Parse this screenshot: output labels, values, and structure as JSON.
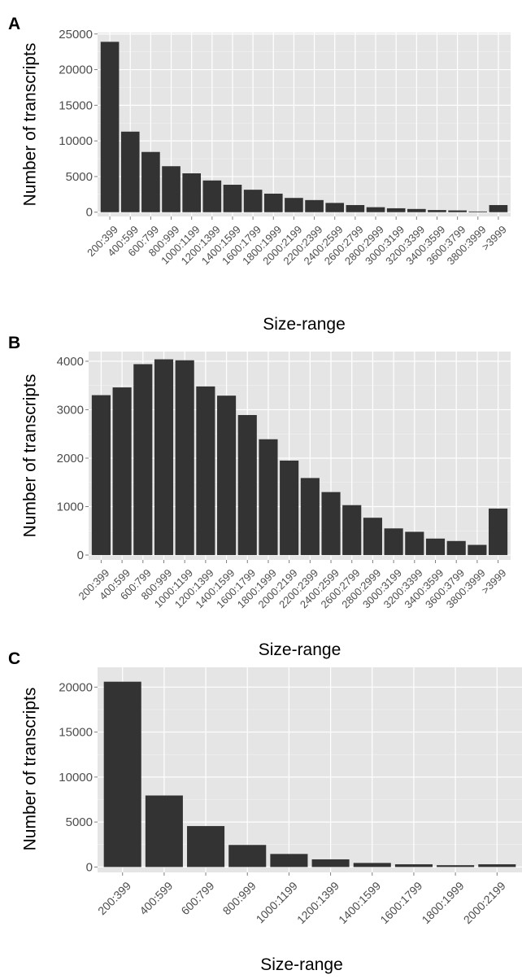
{
  "panels": [
    {
      "letter": "A",
      "xlabel": "Size-range",
      "ylabel": "Number of transcripts"
    },
    {
      "letter": "B",
      "xlabel": "Size-range",
      "ylabel": "Number of transcripts"
    },
    {
      "letter": "C",
      "xlabel": "Size-range",
      "ylabel": "Number of transcripts"
    }
  ],
  "chart_data": [
    {
      "type": "bar",
      "panel": "A",
      "title": "",
      "xlabel": "Size-range",
      "ylabel": "Number of transcripts",
      "categories": [
        "200:399",
        "400:599",
        "600:799",
        "800:999",
        "1000:1199",
        "1200:1399",
        "1400:1599",
        "1600:1799",
        "1800:1999",
        "2000:2199",
        "2200:2399",
        "2400:2599",
        "2600:2799",
        "2800:2999",
        "3000:3199",
        "3200:3399",
        "3400:3599",
        "3600:3799",
        "3800:3999",
        ">3999"
      ],
      "values": [
        23900,
        11300,
        8450,
        6450,
        5450,
        4450,
        3850,
        3150,
        2600,
        2000,
        1700,
        1300,
        1000,
        700,
        550,
        450,
        300,
        250,
        100,
        1000
      ],
      "ylim": [
        -600,
        25200
      ],
      "yticks": [
        0,
        5000,
        10000,
        15000,
        20000,
        25000
      ],
      "ytick_labels": [
        "0",
        "5000",
        "10000",
        "15000",
        "20000",
        "25000"
      ],
      "grid": true,
      "bar_color": "#333333"
    },
    {
      "type": "bar",
      "panel": "B",
      "title": "",
      "xlabel": "Size-range",
      "ylabel": "Number of transcripts",
      "categories": [
        "200:399",
        "400:599",
        "600:799",
        "800:999",
        "1000:1199",
        "1200:1399",
        "1400:1599",
        "1600:1799",
        "1800:1999",
        "2000:2199",
        "2200:2399",
        "2400:2599",
        "2600:2799",
        "2800:2999",
        "3000:3199",
        "3200:3399",
        "3400:3599",
        "3600:3799",
        "3800:3999",
        ">3999"
      ],
      "values": [
        3300,
        3460,
        3940,
        4040,
        4020,
        3480,
        3290,
        2890,
        2390,
        1950,
        1590,
        1300,
        1030,
        770,
        550,
        480,
        340,
        290,
        210,
        960
      ],
      "ylim": [
        -100,
        4200
      ],
      "yticks": [
        0,
        1000,
        2000,
        3000,
        4000
      ],
      "ytick_labels": [
        "0",
        "1000",
        "2000",
        "3000",
        "4000"
      ],
      "grid": true,
      "bar_color": "#333333"
    },
    {
      "type": "bar",
      "panel": "C",
      "title": "",
      "xlabel": "Size-range",
      "ylabel": "Number of transcripts",
      "categories": [
        "200:399",
        "400:599",
        "600:799",
        "800:999",
        "1000:1199",
        "1200:1399",
        "1400:1599",
        "1600:1799",
        "1800:1999",
        "2000:2199"
      ],
      "values": [
        20600,
        7950,
        4550,
        2450,
        1450,
        850,
        450,
        300,
        200,
        300
      ],
      "ylim": [
        -600,
        22200
      ],
      "yticks": [
        0,
        5000,
        10000,
        15000,
        20000
      ],
      "ytick_labels": [
        "0",
        "5000",
        "10000",
        "15000",
        "20000"
      ],
      "grid": true,
      "bar_color": "#333333"
    }
  ]
}
